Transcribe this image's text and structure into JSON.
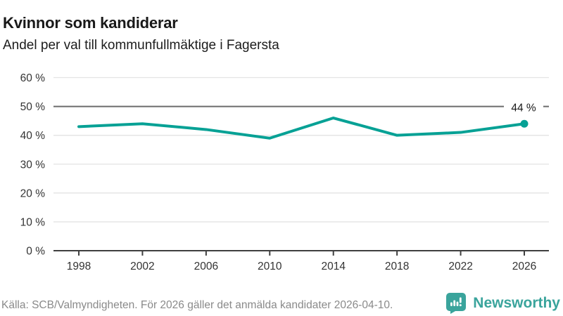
{
  "header": {
    "title": "Kvinnor som kandiderar",
    "subtitle": "Andel per val till kommunfullmäktige i Fagersta"
  },
  "chart_data": {
    "type": "line",
    "x": [
      1998,
      2002,
      2006,
      2010,
      2014,
      2018,
      2022,
      2026
    ],
    "xticklabels": [
      "1998",
      "2002",
      "2006",
      "2010",
      "2014",
      "2018",
      "2022",
      "2026"
    ],
    "values": [
      43,
      44,
      42,
      39,
      46,
      40,
      41,
      44
    ],
    "unit": "%",
    "ylim": [
      0,
      60
    ],
    "ytick_step": 10,
    "ytick_suffix": " %",
    "reference_line": 50,
    "end_label": "44 %",
    "grid": true,
    "legend_position": "none",
    "colors": {
      "line": "#06a195",
      "grid": "#e3e3e3",
      "reference": "#6b6b6b",
      "axis": "#3f3f3f",
      "tick_text": "#333333",
      "end_label_text": "#1a1a1a"
    }
  },
  "footer": {
    "source": "Källa: SCB/Valmyndigheten. För 2026 gäller det anmälda kandidater 2026-04-10.",
    "brand": "Newsworthy",
    "brand_color": "#3aa49c"
  }
}
